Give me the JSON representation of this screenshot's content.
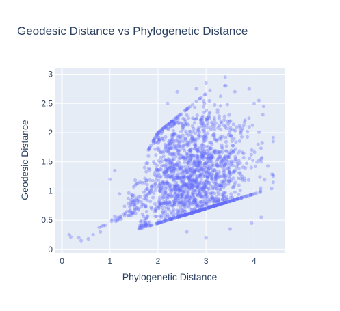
{
  "chart_data": {
    "type": "scatter",
    "title": "Geodesic Distance vs Phylogenetic Distance",
    "xlabel": "Phylogenetic Distance",
    "ylabel": "Geodesic Distance",
    "xlim": [
      -0.15,
      4.65
    ],
    "ylim": [
      -0.06,
      3.1
    ],
    "x_ticks": [
      "0",
      "1",
      "2",
      "3",
      "4"
    ],
    "y_ticks": [
      "0",
      "0.5",
      "1",
      "1.5",
      "2",
      "2.5",
      "3"
    ],
    "grid": true,
    "marker_color": "#636efa",
    "marker_opacity": 0.35,
    "plot_background": "#e5ecf6",
    "point_count": 1850,
    "points_sample": [
      [
        0.15,
        0.25
      ],
      [
        0.35,
        0.2
      ],
      [
        0.4,
        0.15
      ],
      [
        0.55,
        0.18
      ],
      [
        0.65,
        0.25
      ],
      [
        0.8,
        0.3
      ],
      [
        1.0,
        1.2
      ],
      [
        1.1,
        1.35
      ],
      [
        1.2,
        0.95
      ],
      [
        1.5,
        0.8
      ],
      [
        1.8,
        1.6
      ],
      [
        2.0,
        2.0
      ],
      [
        2.2,
        2.5
      ],
      [
        2.4,
        2.7
      ],
      [
        2.6,
        2.3
      ],
      [
        2.8,
        2.75
      ],
      [
        3.0,
        2.85
      ],
      [
        3.4,
        2.95
      ],
      [
        3.6,
        2.7
      ],
      [
        3.9,
        2.75
      ],
      [
        4.0,
        2.5
      ],
      [
        4.1,
        2.55
      ],
      [
        4.2,
        2.45
      ],
      [
        4.4,
        1.85
      ],
      [
        4.15,
        1.55
      ],
      [
        4.15,
        0.55
      ],
      [
        3.95,
        0.45
      ],
      [
        3.5,
        0.35
      ],
      [
        3.0,
        0.2
      ],
      [
        2.6,
        0.3
      ]
    ]
  }
}
